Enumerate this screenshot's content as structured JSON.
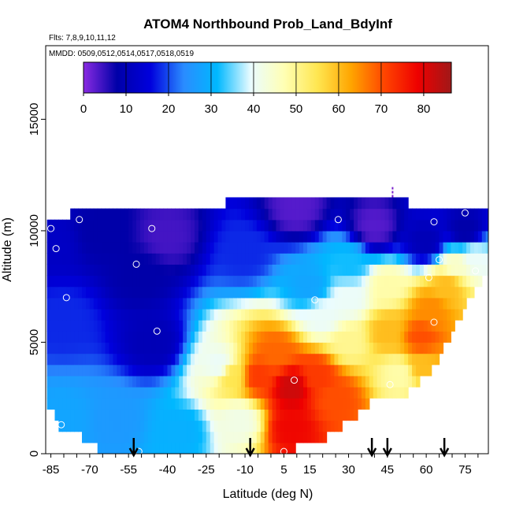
{
  "chart_data": {
    "type": "heatmap",
    "title": "ATOM4 Northbound Prob_Land_BdyInf",
    "subtitle_flights": "Flts: 7,8,9,10,11,12",
    "subtitle_dates": "MMDD: 0509,0512,0514,0517,0518,0519",
    "xlabel": "Latitude (deg N)",
    "ylabel": "Altitude (m)",
    "xlim": [
      -87,
      84
    ],
    "ylim": [
      0,
      18300
    ],
    "x_ticks": [
      -85,
      -70,
      -55,
      -40,
      -25,
      -10,
      5,
      15,
      30,
      45,
      60,
      75
    ],
    "y_ticks": [
      0,
      5000,
      10000,
      15000
    ],
    "colorbar": {
      "min": 0,
      "max": 86.5,
      "ticks": [
        0,
        10,
        20,
        30,
        40,
        50,
        60,
        70,
        80
      ],
      "stops": [
        "#8a2be2",
        "#0000a8",
        "#0000dd",
        "#2a8cff",
        "#00b8ff",
        "#eafcff",
        "#ffffb4",
        "#ffe650",
        "#ffa500",
        "#ff4500",
        "#ee0000",
        "#a01818"
      ]
    },
    "altitude_band_m": 500,
    "column_top_altitude_m": [
      {
        "lat": -86,
        "top": 10500
      },
      {
        "lat": -82,
        "top": 10600
      },
      {
        "lat": -75,
        "top": 10800
      },
      {
        "lat": -60,
        "top": 10800
      },
      {
        "lat": -40,
        "top": 10800
      },
      {
        "lat": -20,
        "top": 10800
      },
      {
        "lat": -15,
        "top": 11500
      },
      {
        "lat": 20,
        "top": 11500
      },
      {
        "lat": 45,
        "top": 11500
      },
      {
        "lat": 51,
        "top": 11500
      },
      {
        "lat": 55,
        "top": 11000
      },
      {
        "lat": 70,
        "top": 10900
      },
      {
        "lat": 78,
        "top": 10900
      }
    ],
    "column_bottom_altitude_m": [
      {
        "lat": -85,
        "bot": 2000
      },
      {
        "lat": -80,
        "bot": 900
      },
      {
        "lat": -70,
        "bot": 700
      },
      {
        "lat": -66,
        "bot": 200
      },
      {
        "lat": -58,
        "bot": 0
      },
      {
        "lat": 3,
        "bot": 0
      },
      {
        "lat": 8,
        "bot": 200
      },
      {
        "lat": 15,
        "bot": 400
      },
      {
        "lat": 20,
        "bot": 600
      },
      {
        "lat": 27,
        "bot": 1200
      },
      {
        "lat": 35,
        "bot": 1900
      },
      {
        "lat": 40,
        "bot": 2600
      },
      {
        "lat": 45,
        "bot": 2700
      },
      {
        "lat": 52,
        "bot": 2700
      },
      {
        "lat": 57,
        "bot": 3200
      },
      {
        "lat": 63,
        "bot": 3800
      },
      {
        "lat": 68,
        "bot": 5000
      },
      {
        "lat": 72,
        "bot": 6000
      },
      {
        "lat": 80,
        "bot": 7500
      },
      {
        "lat": 84,
        "bot": 8200
      }
    ],
    "value_field_anchors": [
      {
        "lat": -50,
        "alt": 8000,
        "v": 8
      },
      {
        "lat": -45,
        "alt": 5000,
        "v": 10
      },
      {
        "lat": -40,
        "alt": 9800,
        "v": 4
      },
      {
        "lat": -80,
        "alt": 6000,
        "v": 18
      },
      {
        "lat": -80,
        "alt": 1500,
        "v": 28
      },
      {
        "lat": -60,
        "alt": 1500,
        "v": 26
      },
      {
        "lat": -35,
        "alt": 1000,
        "v": 30
      },
      {
        "lat": -20,
        "alt": 4000,
        "v": 40
      },
      {
        "lat": -12,
        "alt": 1500,
        "v": 42
      },
      {
        "lat": -15,
        "alt": 3500,
        "v": 55
      },
      {
        "lat": -5,
        "alt": 3500,
        "v": 72
      },
      {
        "lat": 8,
        "alt": 3000,
        "v": 82
      },
      {
        "lat": 8,
        "alt": 1200,
        "v": 78
      },
      {
        "lat": 2,
        "alt": 4500,
        "v": 68
      },
      {
        "lat": 18,
        "alt": 3500,
        "v": 72
      },
      {
        "lat": 25,
        "alt": 2500,
        "v": 70
      },
      {
        "lat": 20,
        "alt": 6200,
        "v": 40
      },
      {
        "lat": 30,
        "alt": 5000,
        "v": 50
      },
      {
        "lat": 45,
        "alt": 5500,
        "v": 60
      },
      {
        "lat": 58,
        "alt": 5200,
        "v": 70
      },
      {
        "lat": 62,
        "alt": 6500,
        "v": 65
      },
      {
        "lat": 50,
        "alt": 3600,
        "v": 48
      },
      {
        "lat": 58,
        "alt": 4000,
        "v": 60
      },
      {
        "lat": 68,
        "alt": 7500,
        "v": 60
      },
      {
        "lat": 72,
        "alt": 8500,
        "v": 45
      },
      {
        "lat": 78,
        "alt": 8800,
        "v": 40
      },
      {
        "lat": 60,
        "alt": 9500,
        "v": 10
      },
      {
        "lat": 40,
        "alt": 10200,
        "v": 3
      },
      {
        "lat": 10,
        "alt": 11000,
        "v": 3
      },
      {
        "lat": -10,
        "alt": 9000,
        "v": 18
      },
      {
        "lat": 30,
        "alt": 8500,
        "v": 32
      },
      {
        "lat": 45,
        "alt": 7500,
        "v": 48
      },
      {
        "lat": -65,
        "alt": 10000,
        "v": 8
      },
      {
        "lat": 75,
        "alt": 10000,
        "v": 8
      },
      {
        "lat": -85,
        "alt": 9500,
        "v": 12
      },
      {
        "lat": 15,
        "alt": 7500,
        "v": 28
      },
      {
        "lat": 30,
        "alt": 7000,
        "v": 40
      }
    ],
    "markers": [
      {
        "lat": -85,
        "alt": 10100
      },
      {
        "lat": -83,
        "alt": 9200
      },
      {
        "lat": -79,
        "alt": 7000
      },
      {
        "lat": -74,
        "alt": 10500
      },
      {
        "lat": -52,
        "alt": 8500
      },
      {
        "lat": -46,
        "alt": 10100
      },
      {
        "lat": -44,
        "alt": 5500
      },
      {
        "lat": 9,
        "alt": 3300
      },
      {
        "lat": 17,
        "alt": 6900
      },
      {
        "lat": 26,
        "alt": 10500
      },
      {
        "lat": 46,
        "alt": 3100
      },
      {
        "lat": 60,
        "alt": 3200
      },
      {
        "lat": 61,
        "alt": 7900
      },
      {
        "lat": 63,
        "alt": 10400
      },
      {
        "lat": 63,
        "alt": 5900
      },
      {
        "lat": 65,
        "alt": 8700
      },
      {
        "lat": 75,
        "alt": 10800
      },
      {
        "lat": 79,
        "alt": 8200
      },
      {
        "lat": -81,
        "alt": 1300
      },
      {
        "lat": -51,
        "alt": 100
      },
      {
        "lat": 5,
        "alt": 100
      }
    ],
    "flight_dividers": [
      -53,
      -8,
      39,
      45,
      67
    ],
    "dashed_segment": {
      "lat": 47,
      "alt_from": 11500,
      "alt_to": 12000
    }
  }
}
